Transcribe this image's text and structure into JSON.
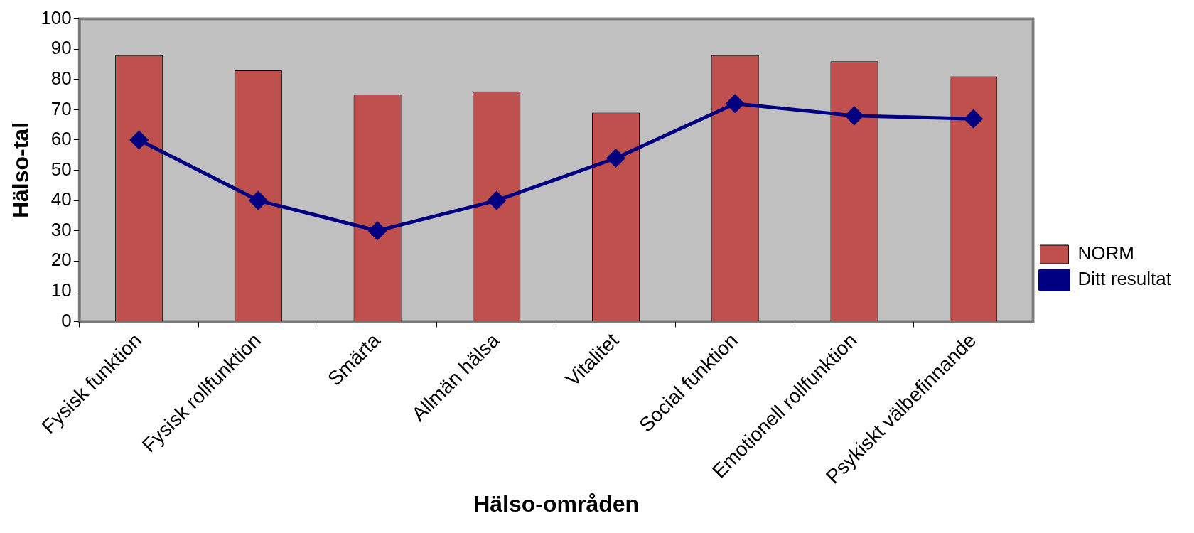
{
  "chart_data": {
    "type": "bar",
    "xlabel": "Hälso-områden",
    "ylabel": "Hälso-tal",
    "categories": [
      "Fysisk funktion",
      "Fysisk rollfunktion",
      "Smärta",
      "Allmän hälsa",
      "Vitalitet",
      "Social funktion",
      "Emotionell rollfunktion",
      "Psykiskt välbefinnande"
    ],
    "series": [
      {
        "name": "NORM",
        "color": "#c0504d",
        "values": [
          88,
          83,
          75,
          76,
          69,
          88,
          86,
          81
        ]
      },
      {
        "name": "Ditt resultat",
        "type": "line",
        "color": "#000080",
        "values": [
          60,
          40,
          30,
          40,
          54,
          72,
          68,
          67
        ],
        "marker": "diamond"
      }
    ],
    "ylim": [
      0,
      100
    ],
    "yticks": [
      0,
      10,
      20,
      30,
      40,
      50,
      60,
      70,
      80,
      90,
      100
    ],
    "grid": false,
    "legend": "right"
  }
}
